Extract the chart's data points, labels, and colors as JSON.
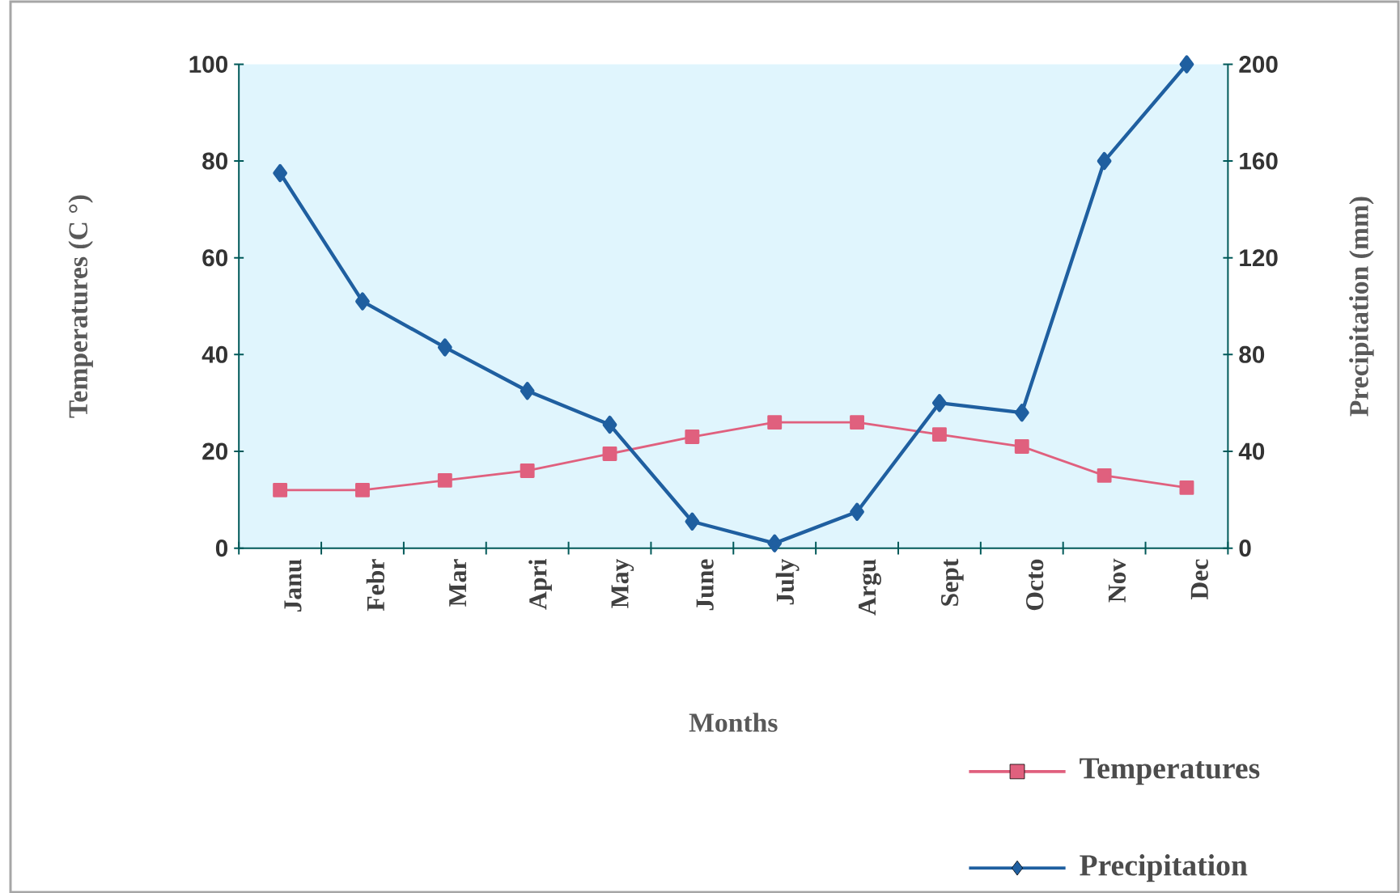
{
  "chart_data": {
    "type": "line",
    "xlabel": "Months",
    "ylabel": "Temperatures (C °)",
    "y2label": "Precipitation (mm)",
    "categories": [
      "Janu",
      "Febr",
      "Mar",
      "Apri",
      "May",
      "June",
      "July",
      "Argu",
      "Sept",
      "Octo",
      "Nov",
      "Dec"
    ],
    "series": [
      {
        "name": "Temperatures",
        "color": "#e0607e",
        "marker": "square",
        "values": [
          12,
          12,
          14,
          16,
          19.5,
          23,
          26,
          26,
          23.5,
          21,
          15,
          12.5
        ]
      },
      {
        "name": "Precipitation",
        "color": "#1f5fa0",
        "marker": "diamond",
        "axis": "y2",
        "values": [
          155,
          102,
          83,
          65,
          51,
          11,
          2,
          15,
          60,
          56,
          160,
          200
        ]
      }
    ],
    "ylim": [
      0,
      100
    ],
    "yticks": [
      0,
      20,
      40,
      60,
      80,
      100
    ],
    "y2lim": [
      0,
      200
    ],
    "y2ticks": [
      0,
      40,
      80,
      120,
      160,
      200
    ],
    "legend": "bottom right",
    "grid": false
  }
}
